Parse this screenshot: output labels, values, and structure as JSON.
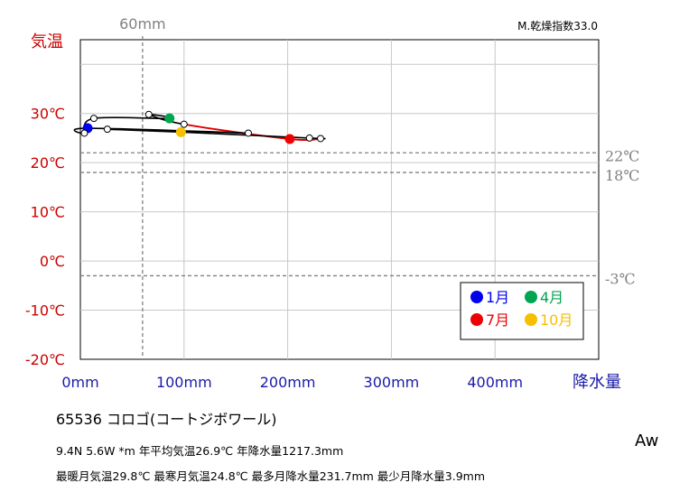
{
  "colors": {
    "temp_axis": "#cc0000",
    "precip_axis": "#1a1aaa",
    "reference": "#808080",
    "line": "#000000",
    "warm_segment": "#e00000",
    "month_1": "#0000ee",
    "month_4": "#00a550",
    "month_7": "#ee0000",
    "month_10": "#f5c000"
  },
  "chart_data": {
    "type": "scatter",
    "title": "",
    "xlabel": "降水量",
    "ylabel": "気温",
    "xlim": [
      0,
      500
    ],
    "ylim": [
      -20,
      45
    ],
    "x_ticks": [
      "0mm",
      "100mm",
      "200mm",
      "300mm",
      "400mm"
    ],
    "y_ticks": [
      "30℃",
      "20℃",
      "10℃",
      "0℃",
      "-10℃",
      "-20℃"
    ],
    "y_tick_values": [
      30,
      20,
      10,
      0,
      -10,
      -20
    ],
    "dryness_index": "M.乾燥指数33.0",
    "reference_lines": [
      {
        "axis": "x",
        "value": 60,
        "label": "60mm"
      },
      {
        "axis": "y",
        "value": 22,
        "label": "22℃"
      },
      {
        "axis": "y",
        "value": 18,
        "label": "18℃"
      },
      {
        "axis": "y",
        "value": -3,
        "label": "-3℃"
      }
    ],
    "months": [
      {
        "month": 1,
        "precip": 7,
        "temp": 27.0
      },
      {
        "month": 2,
        "precip": 3.9,
        "temp": 26.0
      },
      {
        "month": 3,
        "precip": 13,
        "temp": 29.0
      },
      {
        "month": 4,
        "precip": 86,
        "temp": 29.0
      },
      {
        "month": 5,
        "precip": 66,
        "temp": 29.8
      },
      {
        "month": 6,
        "precip": 100,
        "temp": 27.8
      },
      {
        "month": 7,
        "precip": 202,
        "temp": 24.8
      },
      {
        "month": 8,
        "precip": 231.7,
        "temp": 24.9
      },
      {
        "month": 9,
        "precip": 221,
        "temp": 25.0
      },
      {
        "month": 10,
        "precip": 97,
        "temp": 26.2
      },
      {
        "month": 11,
        "precip": 26,
        "temp": 26.8
      },
      {
        "month": 12,
        "precip": 162,
        "temp": 26.0
      }
    ],
    "legend": {
      "placement": "bottom-right",
      "entries": [
        {
          "label": "1月",
          "month": 1,
          "color": "#0000ee"
        },
        {
          "label": "4月",
          "month": 4,
          "color": "#00a550"
        },
        {
          "label": "7月",
          "month": 7,
          "color": "#ee0000"
        },
        {
          "label": "10月",
          "month": 10,
          "color": "#f5c000"
        }
      ]
    }
  },
  "station": {
    "line": "65536  コロゴ(コートジボワール)"
  },
  "stats": {
    "line1": "9.4N  5.6W *m  年平均気温26.9℃ 年降水量1217.3mm",
    "line2": "最暖月気温29.8℃ 最寒月気温24.8℃ 最多月降水量231.7mm 最少月降水量3.9mm"
  },
  "climate_class": "Aw"
}
